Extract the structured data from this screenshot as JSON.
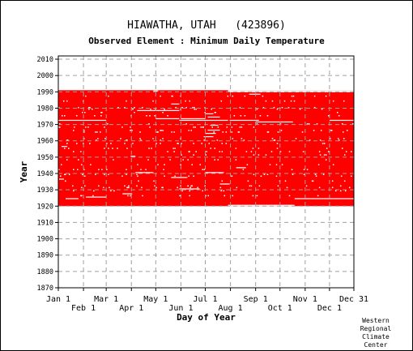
{
  "chart_data": {
    "type": "heatmap",
    "title": "HIAWATHA, UTAH   (423896)",
    "subtitle": "Observed Element : Minimum Daily Temperature",
    "xlabel": "Day of Year",
    "ylabel": "Year",
    "xlim": [
      1,
      365
    ],
    "ylim": [
      1870,
      2012
    ],
    "y_ticks": [
      1870,
      1880,
      1890,
      1900,
      1910,
      1920,
      1930,
      1940,
      1950,
      1960,
      1970,
      1980,
      1990,
      2000,
      2010
    ],
    "x_ticks_upper": [
      {
        "label": "Jan 1",
        "day": 1
      },
      {
        "label": "Mar 1",
        "day": 60
      },
      {
        "label": "May 1",
        "day": 121
      },
      {
        "label": "Jul 1",
        "day": 182
      },
      {
        "label": "Sep 1",
        "day": 244
      },
      {
        "label": "Nov 1",
        "day": 305
      },
      {
        "label": "Dec 31",
        "day": 365
      }
    ],
    "x_ticks_lower": [
      {
        "label": "Feb 1",
        "day": 32
      },
      {
        "label": "Apr 1",
        "day": 91
      },
      {
        "label": "Jun 1",
        "day": 152
      },
      {
        "label": "Aug 1",
        "day": 213
      },
      {
        "label": "Oct 1",
        "day": 274
      },
      {
        "label": "Dec 1",
        "day": 335
      }
    ],
    "data_color": "#ff0000",
    "grid": true,
    "observed_period": {
      "start_year": 1920,
      "end_year": 1990
    },
    "partial_years": [
      {
        "year": 1920,
        "start_day": 1,
        "end_day": 210
      },
      {
        "year": 1920,
        "start_day": 292,
        "end_day": 365
      },
      {
        "year": 1990,
        "start_day": 1,
        "end_day": 210
      }
    ],
    "missing_segments": [
      {
        "year": 1919.9,
        "start_day": 214,
        "end_day": 290
      },
      {
        "year": 1924,
        "start_day": 292,
        "end_day": 365
      },
      {
        "year": 1924,
        "start_day": 10,
        "end_day": 26
      },
      {
        "year": 1925,
        "start_day": 35,
        "end_day": 60
      },
      {
        "year": 1927,
        "start_day": 80,
        "end_day": 92
      },
      {
        "year": 1930,
        "start_day": 150,
        "end_day": 175
      },
      {
        "year": 1933,
        "start_day": 200,
        "end_day": 212
      },
      {
        "year": 1936,
        "start_day": 2,
        "end_day": 8
      },
      {
        "year": 1937,
        "start_day": 140,
        "end_day": 160
      },
      {
        "year": 1940,
        "start_day": 96,
        "end_day": 118
      },
      {
        "year": 1940,
        "start_day": 182,
        "end_day": 205
      },
      {
        "year": 1943,
        "start_day": 220,
        "end_day": 232
      },
      {
        "year": 1950,
        "start_day": 90,
        "end_day": 96
      },
      {
        "year": 1956,
        "start_day": 5,
        "end_day": 12
      },
      {
        "year": 1962,
        "start_day": 180,
        "end_day": 192
      },
      {
        "year": 1964,
        "start_day": 182,
        "end_day": 195
      },
      {
        "year": 1966,
        "start_day": 185,
        "end_day": 200
      },
      {
        "year": 1969,
        "start_day": 188,
        "end_day": 198
      },
      {
        "year": 1972,
        "start_day": 1,
        "end_day": 60
      },
      {
        "year": 1972,
        "start_day": 150,
        "end_day": 210
      },
      {
        "year": 1972,
        "start_day": 212,
        "end_day": 248
      },
      {
        "year": 1972,
        "start_day": 335,
        "end_day": 365
      },
      {
        "year": 1973,
        "start_day": 121,
        "end_day": 150
      },
      {
        "year": 1973,
        "start_day": 152,
        "end_day": 182
      },
      {
        "year": 1971,
        "start_day": 244,
        "end_day": 290
      },
      {
        "year": 1974,
        "start_day": 185,
        "end_day": 200
      },
      {
        "year": 1976,
        "start_day": 182,
        "end_day": 192
      },
      {
        "year": 1978,
        "start_day": 98,
        "end_day": 150
      },
      {
        "year": 1982,
        "start_day": 140,
        "end_day": 150
      },
      {
        "year": 1988,
        "start_day": 236,
        "end_day": 250
      },
      {
        "year": 1990,
        "start_day": 118,
        "end_day": 124
      }
    ],
    "speckle_years": [
      1926,
      1929,
      1931,
      1932,
      1935,
      1938,
      1939,
      1942,
      1945,
      1948,
      1951,
      1953,
      1955,
      1958,
      1960,
      1961,
      1965,
      1966,
      1968,
      1970,
      1975,
      1977,
      1979,
      1980,
      1984,
      1987
    ]
  },
  "credit": [
    "Western",
    "Regional",
    "Climate",
    "Center"
  ]
}
